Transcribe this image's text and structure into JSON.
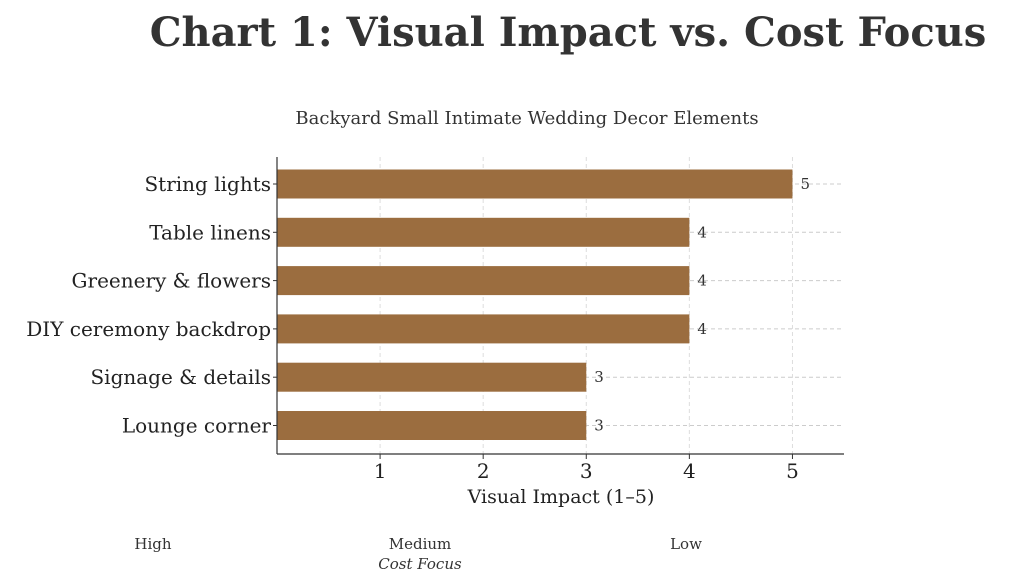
{
  "chart_data": {
    "type": "bar",
    "orientation": "horizontal",
    "title": "Chart 1: Visual Impact vs. Cost Focus",
    "subtitle": "Backyard Small Intimate Wedding Decor Elements",
    "categories": [
      "String lights",
      "Table linens",
      "Greenery & flowers",
      "DIY ceremony backdrop",
      "Signage & details",
      "Lounge corner"
    ],
    "values": [
      5,
      4,
      4,
      4,
      3,
      3
    ],
    "xlabel": "Visual Impact (1–5)",
    "ylabel": "",
    "xlim": [
      0,
      5.5
    ],
    "xticks": [
      "1",
      "2",
      "3",
      "4",
      "5"
    ],
    "grid": true,
    "bar_color": "#9b6d3f",
    "data_labels": [
      "5",
      "4",
      "4",
      "4",
      "3",
      "3"
    ],
    "secondary_axis": {
      "label": "Cost Focus",
      "levels": [
        "High",
        "Medium",
        "Low"
      ]
    }
  }
}
